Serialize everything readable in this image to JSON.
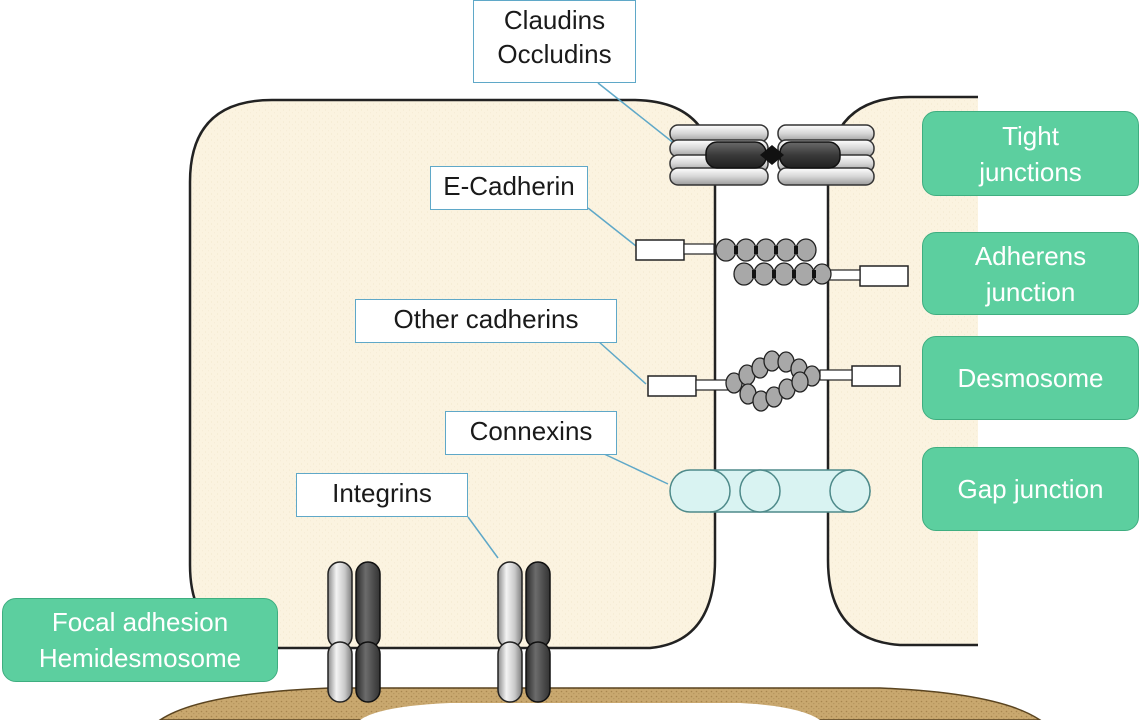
{
  "protein_labels": {
    "claudins_occludins": [
      "Claudins",
      "Occludins"
    ],
    "e_cadherin": "E-Cadherin",
    "other_cadherins": "Other cadherins",
    "connexins": "Connexins",
    "integrins": "Integrins"
  },
  "junction_labels": {
    "tight_junctions": [
      "Tight",
      "junctions"
    ],
    "adherens_junction": [
      "Adherens",
      "junction"
    ],
    "desmosome": "Desmosome",
    "gap_junction": "Gap junction",
    "focal_adhesion": [
      "Focal adhesion",
      "Hemidesmosome"
    ]
  },
  "colors": {
    "cell_fill": "#fbf3e0",
    "label_border": "#5fa8c8",
    "junction_box": "#5ccf9f",
    "connexin_fill": "#d9f3f2",
    "basement_membrane": "#c6a36a"
  }
}
